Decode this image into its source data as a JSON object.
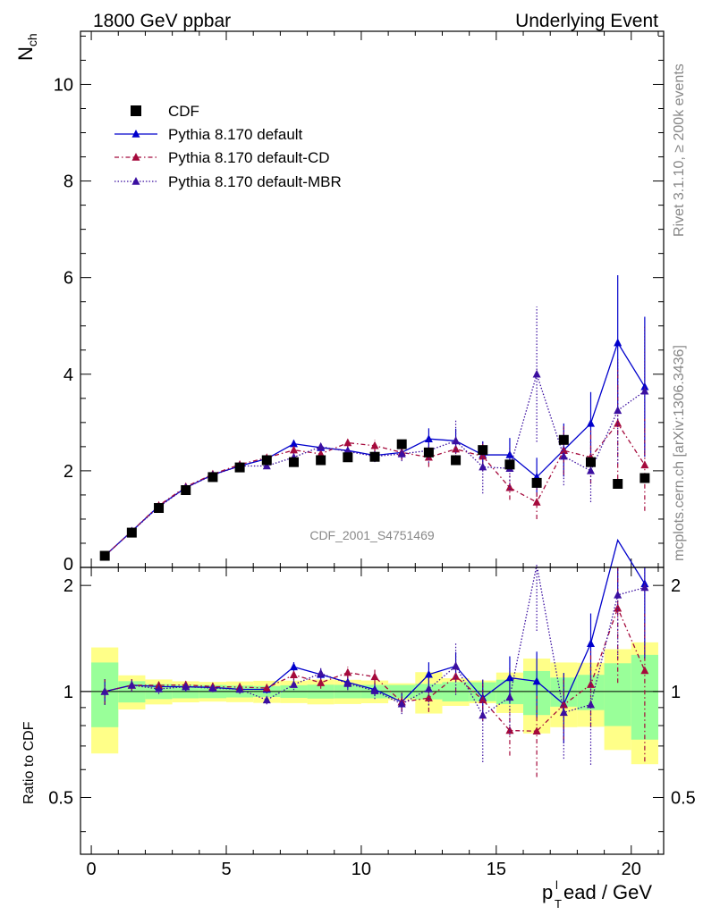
{
  "header": {
    "left": "1800 GeV ppbar",
    "right": "Underlying Event"
  },
  "side_text": {
    "rivet": "Rivet 3.1.10, ≥ 200k events",
    "mcplots": "mcplots.cern.ch [arXiv:1306.3436]"
  },
  "watermark": "CDF_2001_S4751469",
  "ylabel_main": "N",
  "ylabel_main_sub": "ch",
  "ylabel_ratio": "Ratio to CDF",
  "xlabel": {
    "p": "p",
    "sup": "l",
    "sub": "T",
    "rest": "ead / GeV"
  },
  "colors": {
    "data": "#000000",
    "default": "#0000cc",
    "cd": "#a50a3c",
    "mbr": "#3b0fa0",
    "band_inner": "#99ff99",
    "band_outer": "#ffff88"
  },
  "chart_data": {
    "type": "scatter",
    "x": [
      0.5,
      1.5,
      2.5,
      3.5,
      4.5,
      5.5,
      6.5,
      7.5,
      8.5,
      9.5,
      10.5,
      11.5,
      12.5,
      13.5,
      14.5,
      15.5,
      16.5,
      17.5,
      18.5,
      19.5,
      20.5
    ],
    "xlim": [
      -0.4,
      21.2
    ],
    "ylim": [
      0,
      11.1
    ],
    "ratio_ylim": [
      0.345,
      2.25
    ],
    "xticks": [
      0,
      5,
      10,
      15,
      20
    ],
    "yticks": [
      2,
      4,
      6,
      8,
      10
    ],
    "ytick_zero": "0",
    "ratio_ticks": [
      0.5,
      1,
      2
    ],
    "series": [
      {
        "name": "CDF",
        "key": "data",
        "values": [
          0.24,
          0.72,
          1.23,
          1.6,
          1.87,
          2.07,
          2.22,
          2.18,
          2.22,
          2.28,
          2.29,
          2.55,
          2.38,
          2.22,
          2.43,
          2.13,
          1.75,
          2.64,
          2.18,
          1.73,
          1.85
        ],
        "band_inner": [
          0.05,
          0.05,
          0.06,
          0.07,
          0.08,
          0.08,
          0.08,
          0.09,
          0.1,
          0.1,
          0.1,
          0.11,
          0.12,
          0.14,
          0.15,
          0.17,
          0.25,
          0.25,
          0.25,
          0.35,
          0.5
        ],
        "band_outer": [
          0.08,
          0.08,
          0.1,
          0.11,
          0.12,
          0.14,
          0.16,
          0.16,
          0.18,
          0.18,
          0.17,
          0.14,
          0.32,
          0.2,
          0.18,
          0.28,
          0.42,
          0.55,
          0.45,
          0.55,
          0.7
        ]
      },
      {
        "name": "Pythia 8.170 default",
        "key": "default",
        "values": [
          0.24,
          0.75,
          1.27,
          1.65,
          1.92,
          2.1,
          2.25,
          2.56,
          2.48,
          2.42,
          2.32,
          2.38,
          2.66,
          2.62,
          2.33,
          2.33,
          1.87,
          2.43,
          2.98,
          4.65,
          3.74
        ],
        "err": [
          0.02,
          0.03,
          0.04,
          0.05,
          0.05,
          0.06,
          0.06,
          0.08,
          0.09,
          0.1,
          0.1,
          0.15,
          0.22,
          0.25,
          0.28,
          0.35,
          0.4,
          0.55,
          0.65,
          1.4,
          1.45
        ]
      },
      {
        "name": "Pythia 8.170 default-CD",
        "key": "cd",
        "values": [
          0.24,
          0.75,
          1.28,
          1.67,
          1.93,
          2.13,
          2.27,
          2.43,
          2.35,
          2.58,
          2.52,
          2.38,
          2.28,
          2.45,
          2.3,
          1.65,
          1.35,
          2.42,
          2.28,
          2.98,
          2.12
        ],
        "err": [
          0.02,
          0.03,
          0.04,
          0.05,
          0.05,
          0.06,
          0.06,
          0.08,
          0.09,
          0.1,
          0.12,
          0.15,
          0.2,
          0.25,
          0.3,
          0.25,
          0.35,
          0.5,
          0.55,
          1.15,
          0.95
        ]
      },
      {
        "name": "Pythia 8.170 default-MBR",
        "key": "mbr",
        "values": [
          0.24,
          0.75,
          1.25,
          1.65,
          1.91,
          2.1,
          2.1,
          2.28,
          2.5,
          2.4,
          2.3,
          2.35,
          2.42,
          2.62,
          2.08,
          2.05,
          4.0,
          2.3,
          2.0,
          3.25,
          3.65
        ],
        "err": [
          0.02,
          0.03,
          0.04,
          0.05,
          0.05,
          0.06,
          0.06,
          0.08,
          0.09,
          0.1,
          0.12,
          0.15,
          0.25,
          0.45,
          0.55,
          0.45,
          1.4,
          0.6,
          0.65,
          1.1,
          1.35
        ]
      }
    ]
  }
}
